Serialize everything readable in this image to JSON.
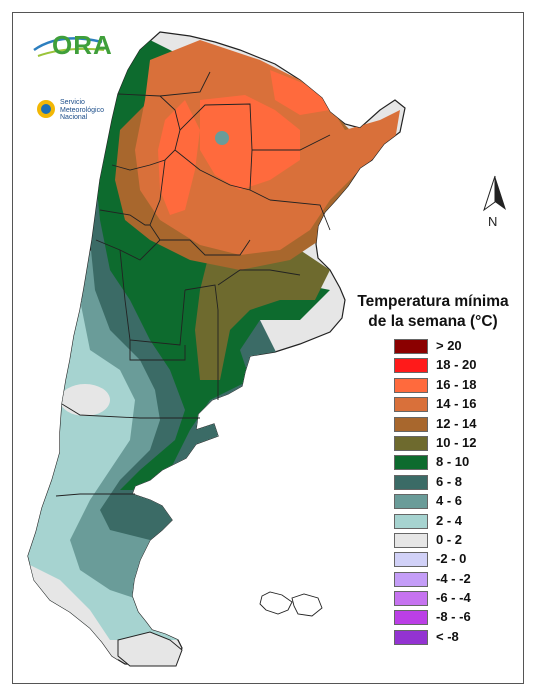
{
  "logos": {
    "ora": "ORA",
    "smn": [
      "Servicio",
      "Meteorológico",
      "Nacional"
    ]
  },
  "north_arrow": {
    "label": "N"
  },
  "legend": {
    "title_line1": "Temperatura mínima",
    "title_line2": "de la semana (°C)",
    "items": [
      {
        "label": "> 20",
        "color": "#8b0000"
      },
      {
        "label": "18 - 20",
        "color": "#ff1a1a"
      },
      {
        "label": "16 - 18",
        "color": "#ff6a3d"
      },
      {
        "label": "14 - 16",
        "color": "#d9703a"
      },
      {
        "label": "12 - 14",
        "color": "#a8672d"
      },
      {
        "label": "10 - 12",
        "color": "#6e6a2e"
      },
      {
        "label": "8 - 10",
        "color": "#0d6b2e"
      },
      {
        "label": "6 - 8",
        "color": "#3b6b66"
      },
      {
        "label": "4 - 6",
        "color": "#6a9c99"
      },
      {
        "label": "2 - 4",
        "color": "#a6d3d0"
      },
      {
        "label": "0 - 2",
        "color": "#e6e6e6"
      },
      {
        "label": "-2 - 0",
        "color": "#d1d1f7"
      },
      {
        "label": "-4 - -2",
        "color": "#c49df7"
      },
      {
        "label": "-6 - -4",
        "color": "#c673f0"
      },
      {
        "label": "-8 - -6",
        "color": "#bb3fe6"
      },
      {
        "label": "< -8",
        "color": "#9333d1"
      }
    ]
  },
  "colors": {
    "border_lines": "#222222",
    "background": "#ffffff"
  }
}
